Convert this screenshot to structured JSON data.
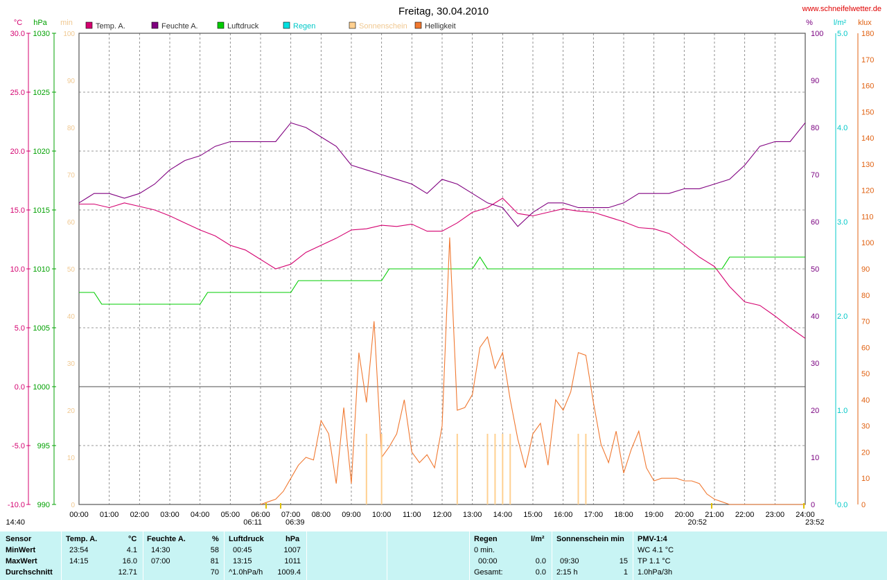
{
  "chart_data": {
    "type": "line",
    "title": "Freitag, 30.04.2010",
    "source": "www.schneifelwetter.de",
    "x_ticks": [
      "00:00",
      "01:00",
      "02:00",
      "03:00",
      "04:00",
      "05:00",
      "06:00",
      "07:00",
      "08:00",
      "09:00",
      "10:00",
      "11:00",
      "12:00",
      "13:00",
      "14:00",
      "15:00",
      "16:00",
      "17:00",
      "18:00",
      "19:00",
      "20:00",
      "21:00",
      "22:00",
      "23:00",
      "24:00"
    ],
    "xlim": [
      0,
      24
    ],
    "axes": {
      "temp": {
        "unit": "°C",
        "ticks": [
          "30.0",
          "25.0",
          "20.0",
          "15.0",
          "10.0",
          "5.0",
          "0.0",
          "-5.0",
          "-10.0"
        ],
        "range": [
          -10,
          30
        ],
        "color": "#d4006f"
      },
      "pressure": {
        "unit": "hPa",
        "ticks": [
          "1030",
          "1025",
          "1020",
          "1015",
          "1010",
          "1005",
          "1000",
          "995",
          "990"
        ],
        "range": [
          990,
          1030
        ],
        "color": "#00a000"
      },
      "minutes": {
        "unit": "min",
        "ticks": [
          "100",
          "90",
          "80",
          "70",
          "60",
          "50",
          "40",
          "30",
          "20",
          "10",
          "0"
        ],
        "range": [
          0,
          100
        ],
        "color": "#f0c890"
      },
      "humidity": {
        "unit": "%",
        "ticks": [
          "100",
          "90",
          "80",
          "70",
          "60",
          "50",
          "40",
          "30",
          "20",
          "10",
          "0"
        ],
        "range": [
          0,
          100
        ],
        "color": "#7a0080"
      },
      "rain": {
        "unit": "l/m²",
        "ticks": [
          "5.0",
          "4.0",
          "3.0",
          "2.0",
          "1.0",
          "0.0"
        ],
        "range": [
          0,
          5
        ],
        "color": "#00c8c8"
      },
      "light": {
        "unit": "klux",
        "ticks": [
          "180",
          "170",
          "160",
          "150",
          "140",
          "130",
          "120",
          "110",
          "100",
          "90",
          "80",
          "70",
          "60",
          "50",
          "40",
          "30",
          "20",
          "10",
          "0"
        ],
        "range": [
          0,
          180
        ],
        "color": "#e06010"
      }
    },
    "legend": [
      {
        "name": "Temp. A.",
        "color": "#d4006f"
      },
      {
        "name": "Feuchte A.",
        "color": "#800080"
      },
      {
        "name": "Luftdruck",
        "color": "#00cc00"
      },
      {
        "name": "Regen",
        "color": "#00e0e0"
      },
      {
        "name": "Sonnenschein",
        "color": "#ffd090"
      },
      {
        "name": "Helligkeit",
        "color": "#f07830"
      }
    ],
    "series": [
      {
        "name": "Temp. A.",
        "axis": "temp",
        "color": "#d4006f",
        "x": [
          0,
          0.5,
          1,
          1.5,
          2,
          2.5,
          3,
          3.5,
          4,
          4.5,
          5,
          5.5,
          6,
          6.5,
          7,
          7.5,
          8,
          8.5,
          9,
          9.5,
          10,
          10.5,
          11,
          11.5,
          12,
          12.5,
          13,
          13.5,
          14,
          14.5,
          15,
          15.5,
          16,
          16.5,
          17,
          17.5,
          18,
          18.5,
          19,
          19.5,
          20,
          20.5,
          21,
          21.5,
          22,
          22.5,
          23,
          23.5,
          24
        ],
        "values": [
          15.5,
          15.5,
          15.2,
          15.6,
          15.3,
          15.0,
          14.5,
          13.9,
          13.3,
          12.8,
          12.0,
          11.6,
          10.8,
          10.0,
          10.4,
          11.4,
          12.0,
          12.6,
          13.3,
          13.4,
          13.7,
          13.6,
          13.8,
          13.2,
          13.2,
          13.9,
          14.8,
          15.2,
          16.0,
          14.7,
          14.5,
          14.8,
          15.1,
          14.9,
          14.8,
          14.4,
          14.0,
          13.5,
          13.4,
          13.0,
          12.0,
          11.0,
          10.2,
          8.5,
          7.2,
          6.9,
          6.0,
          5.0,
          4.1
        ]
      },
      {
        "name": "Feuchte A.",
        "axis": "humidity",
        "color": "#800080",
        "x": [
          0,
          0.5,
          1,
          1.5,
          2,
          2.5,
          3,
          3.5,
          4,
          4.5,
          5,
          5.5,
          6,
          6.5,
          7,
          7.5,
          8,
          8.5,
          9,
          9.5,
          10,
          10.5,
          11,
          11.5,
          12,
          12.5,
          13,
          13.5,
          14,
          14.5,
          15,
          15.5,
          16,
          16.5,
          17,
          17.5,
          18,
          18.5,
          19,
          19.5,
          20,
          20.5,
          21,
          21.5,
          22,
          22.5,
          23,
          23.5,
          24
        ],
        "values": [
          64,
          66,
          66,
          65,
          66,
          68,
          71,
          73,
          74,
          76,
          77,
          77,
          77,
          77,
          81,
          80,
          78,
          76,
          72,
          71,
          70,
          69,
          68,
          66,
          69,
          68,
          66,
          64,
          63,
          59,
          62,
          64,
          64,
          63,
          63,
          63,
          64,
          66,
          66,
          66,
          67,
          67,
          68,
          69,
          72,
          76,
          77,
          77,
          81
        ]
      },
      {
        "name": "Luftdruck",
        "axis": "pressure",
        "color": "#00cc00",
        "x": [
          0,
          0.5,
          0.75,
          1.5,
          2,
          3,
          4,
          4.25,
          5,
          6,
          7,
          7.25,
          8,
          9,
          10,
          10.25,
          11,
          12,
          13,
          13.25,
          13.5,
          14,
          15,
          16,
          17,
          18,
          19,
          20,
          21,
          21.25,
          21.5,
          22,
          23,
          24
        ],
        "values": [
          1008,
          1008,
          1007,
          1007,
          1007,
          1007,
          1007,
          1008,
          1008,
          1008,
          1008,
          1009,
          1009,
          1009,
          1009,
          1010,
          1010,
          1010,
          1010,
          1011,
          1010,
          1010,
          1010,
          1010,
          1010,
          1010,
          1010,
          1010,
          1010,
          1010,
          1011,
          1011,
          1011,
          1011
        ]
      },
      {
        "name": "Helligkeit",
        "axis": "light",
        "color": "#f07830",
        "x": [
          6,
          6.25,
          6.5,
          6.75,
          7,
          7.25,
          7.5,
          7.75,
          8,
          8.25,
          8.5,
          8.75,
          9,
          9.25,
          9.5,
          9.75,
          10,
          10.25,
          10.5,
          10.75,
          11,
          11.25,
          11.5,
          11.75,
          12,
          12.25,
          12.5,
          12.75,
          13,
          13.25,
          13.5,
          13.75,
          14,
          14.25,
          14.5,
          14.75,
          15,
          15.25,
          15.5,
          15.75,
          16,
          16.25,
          16.5,
          16.75,
          17,
          17.25,
          17.5,
          17.75,
          18,
          18.25,
          18.5,
          18.75,
          19,
          19.25,
          19.5,
          19.75,
          20,
          20.25,
          20.5,
          20.75,
          21,
          21.25,
          21.5,
          21.75,
          22,
          22.25,
          22.5,
          22.75,
          23,
          23.25,
          23.5,
          23.75,
          24
        ],
        "values": [
          0,
          1,
          2,
          5,
          10,
          15,
          18,
          17,
          32,
          27,
          8,
          37,
          8,
          58,
          39,
          70,
          18,
          22,
          27,
          40,
          20,
          16,
          19,
          14,
          30,
          102,
          36,
          37,
          42,
          60,
          64,
          52,
          58,
          40,
          25,
          14,
          27,
          31,
          15,
          40,
          36,
          43,
          58,
          57,
          39,
          23,
          16,
          28,
          12,
          21,
          28,
          14,
          9,
          10,
          10,
          10,
          9,
          9,
          8,
          4,
          2,
          1,
          0,
          0,
          0,
          0,
          0,
          0,
          0,
          0,
          0,
          0,
          0
        ]
      },
      {
        "name": "Sonnenschein",
        "axis": "minutes",
        "color": "#ffd090",
        "kind": "bars",
        "x": [
          9.5,
          10.0,
          12.5,
          13.5,
          13.75,
          14.0,
          14.25,
          16.5,
          16.75
        ],
        "values": [
          15,
          15,
          15,
          15,
          15,
          15,
          15,
          15,
          15
        ]
      }
    ],
    "bottom_markers": {
      "sunrise": "06:11",
      "sunrise2": "06:39",
      "sunset": "20:52",
      "sunset2": "23:52",
      "midday": "14:40"
    }
  },
  "summary": {
    "headers": {
      "sensor": "Sensor",
      "temp": "Temp. A.",
      "temp_unit": "°C",
      "hum": "Feuchte A.",
      "hum_unit": "%",
      "press": "Luftdruck",
      "press_unit": "hPa",
      "rain": "Regen",
      "rain_unit": "l/m²",
      "sun": "Sonnenschein min",
      "pmv": "PMV-1:4"
    },
    "rows": [
      {
        "label": "MinWert",
        "temp_time": "23:54",
        "temp_val": "4.1",
        "hum_time": "14:30",
        "hum_val": "58",
        "press_time": "00:45",
        "press_val": "1007",
        "rain_text": "0 min.",
        "sun_text": "",
        "sun_val": "",
        "pmv": "WC 4.1 °C"
      },
      {
        "label": "MaxWert",
        "temp_time": "14:15",
        "temp_val": "16.0",
        "hum_time": "07:00",
        "hum_val": "81",
        "press_time": "13:15",
        "press_val": "1011",
        "rain_text": "00:00",
        "rain_val": "0.0",
        "sun_text": "09:30",
        "sun_val": "15",
        "pmv": "TP 1.1 °C"
      },
      {
        "label": "Durchschnitt",
        "temp_time": "",
        "temp_val": "12.71",
        "hum_time": "",
        "hum_val": "70",
        "press_time": "^1.0hPa/h",
        "press_val": "1009.4",
        "rain_text": "Gesamt:",
        "rain_val": "0.0",
        "sun_text": "2:15 h",
        "sun_val": "1",
        "pmv": "1.0hPa/3h"
      }
    ]
  }
}
